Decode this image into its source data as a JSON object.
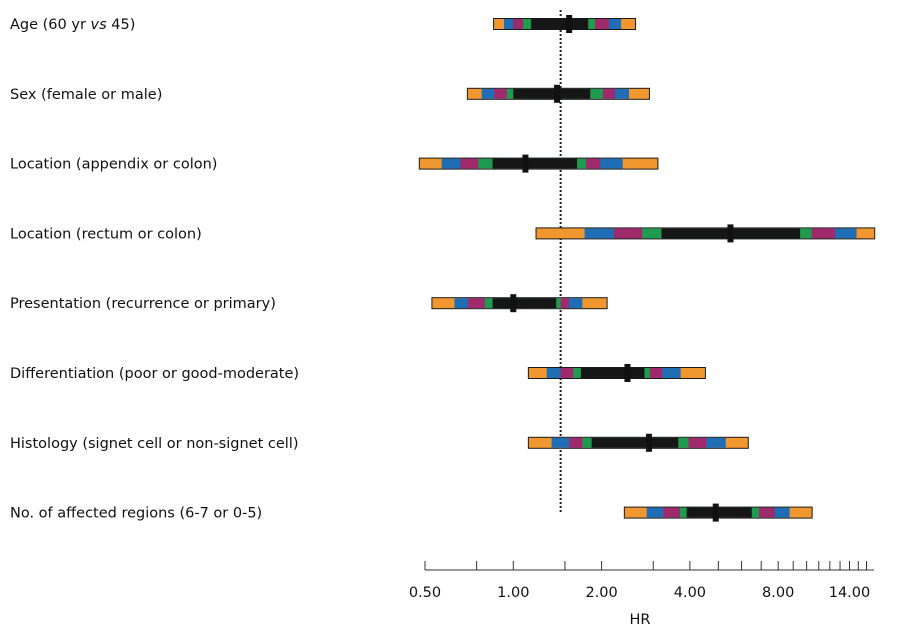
{
  "chart_data": {
    "type": "forest",
    "xlabel": "HR",
    "x_scale": "log",
    "xlim": [
      0.5,
      17
    ],
    "tick_labels": [
      "0.50",
      "1.00",
      "2.00",
      "4.00",
      "8.00",
      "14.00"
    ],
    "tick_values": [
      0.5,
      1,
      2,
      4,
      8,
      14
    ],
    "reference_line": 1.45,
    "band_colors": {
      "orange": "#F0972F",
      "blue": "#1F6EB5",
      "magenta": "#9E2A6B",
      "green": "#1E9B4E",
      "black": "#161616"
    },
    "rows": [
      {
        "label_parts": [
          "Age (60 yr ",
          "vs",
          " 45)"
        ],
        "hr": 1.55,
        "bands": [
          [
            0.86,
            2.6
          ],
          [
            0.93,
            2.33
          ],
          [
            1.0,
            2.12
          ],
          [
            1.08,
            1.9
          ],
          [
            1.15,
            1.8
          ]
        ]
      },
      {
        "label_parts": [
          "Sex (female or male)"
        ],
        "hr": 1.41,
        "bands": [
          [
            0.7,
            2.9
          ],
          [
            0.78,
            2.48
          ],
          [
            0.86,
            2.22
          ],
          [
            0.95,
            2.02
          ],
          [
            1.0,
            1.83
          ]
        ]
      },
      {
        "label_parts": [
          "Location (appendix or colon)"
        ],
        "hr": 1.1,
        "bands": [
          [
            0.48,
            3.1
          ],
          [
            0.57,
            2.36
          ],
          [
            0.66,
            1.98
          ],
          [
            0.76,
            1.77
          ],
          [
            0.85,
            1.65
          ]
        ]
      },
      {
        "label_parts": [
          "Location (rectum or colon)"
        ],
        "hr": 5.5,
        "bands": [
          [
            1.2,
            17
          ],
          [
            1.75,
            14.8
          ],
          [
            2.2,
            12.5
          ],
          [
            2.75,
            10.4
          ],
          [
            3.2,
            9.5
          ]
        ]
      },
      {
        "label_parts": [
          "Presentation (recurrence or primary)"
        ],
        "hr": 1.0,
        "bands": [
          [
            0.53,
            2.08
          ],
          [
            0.63,
            1.72
          ],
          [
            0.7,
            1.55
          ],
          [
            0.8,
            1.45
          ],
          [
            0.85,
            1.4
          ]
        ]
      },
      {
        "label_parts": [
          "Differentiation (poor or good-moderate)"
        ],
        "hr": 2.45,
        "bands": [
          [
            1.13,
            4.5
          ],
          [
            1.3,
            3.72
          ],
          [
            1.45,
            3.22
          ],
          [
            1.6,
            2.92
          ],
          [
            1.7,
            2.8
          ]
        ]
      },
      {
        "label_parts": [
          "Histology (signet cell or non-signet cell)"
        ],
        "hr": 2.9,
        "bands": [
          [
            1.13,
            6.3
          ],
          [
            1.35,
            5.3
          ],
          [
            1.55,
            4.55
          ],
          [
            1.72,
            3.96
          ],
          [
            1.85,
            3.65
          ]
        ]
      },
      {
        "label_parts": [
          "No. of affected regions (6-7 or 0-5)"
        ],
        "hr": 4.9,
        "bands": [
          [
            2.4,
            10.4
          ],
          [
            2.85,
            8.75
          ],
          [
            3.25,
            7.78
          ],
          [
            3.7,
            6.88
          ],
          [
            3.9,
            6.5
          ]
        ]
      }
    ]
  }
}
